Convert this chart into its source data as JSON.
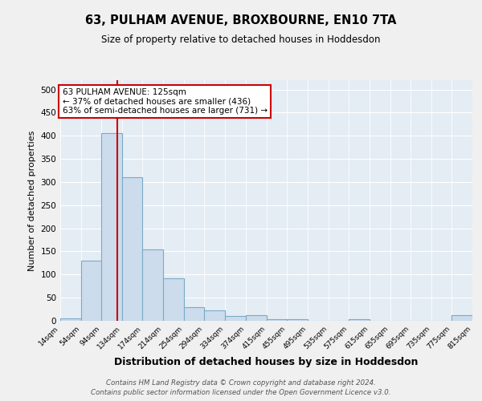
{
  "title": "63, PULHAM AVENUE, BROXBOURNE, EN10 7TA",
  "subtitle": "Size of property relative to detached houses in Hoddesdon",
  "xlabel": "Distribution of detached houses by size in Hoddesdon",
  "ylabel": "Number of detached properties",
  "bar_color": "#ccdcec",
  "bar_edge_color": "#7aaac8",
  "background_color": "#e4ecf4",
  "grid_color": "#ffffff",
  "fig_background": "#f0f0f0",
  "red_line_x": 125,
  "annotation_line1": "63 PULHAM AVENUE: 125sqm",
  "annotation_line2": "← 37% of detached houses are smaller (436)",
  "annotation_line3": "63% of semi-detached houses are larger (731) →",
  "annotation_box_color": "#ffffff",
  "annotation_border_color": "#cc0000",
  "footnote1": "Contains HM Land Registry data © Crown copyright and database right 2024.",
  "footnote2": "Contains public sector information licensed under the Open Government Licence v3.0.",
  "bin_edges": [
    14,
    54,
    94,
    134,
    174,
    214,
    254,
    294,
    334,
    374,
    415,
    455,
    495,
    535,
    575,
    615,
    655,
    695,
    735,
    775,
    815
  ],
  "bin_values": [
    5,
    130,
    405,
    310,
    155,
    92,
    30,
    23,
    10,
    13,
    3,
    3,
    0,
    0,
    3,
    0,
    0,
    0,
    0,
    13
  ],
  "ylim": [
    0,
    520
  ],
  "yticks": [
    0,
    50,
    100,
    150,
    200,
    250,
    300,
    350,
    400,
    450,
    500
  ]
}
